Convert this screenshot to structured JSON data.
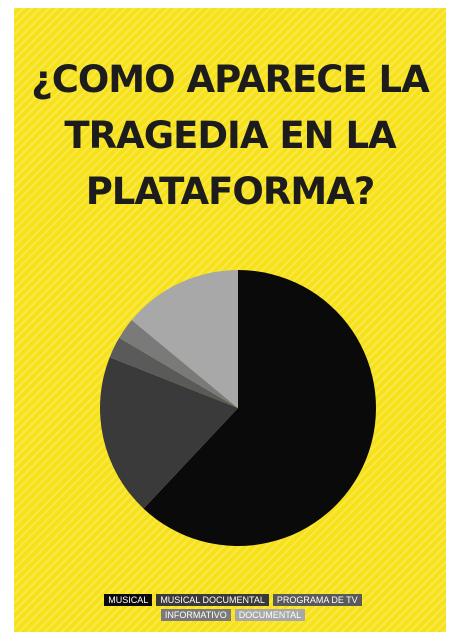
{
  "title_lines": [
    "¿COMO APARECE LA",
    "TRAGEDIA EN LA",
    "PLATAFORMA?"
  ],
  "colors": {
    "background": "#f7e21a",
    "title": "#1c1c1c",
    "slices": [
      "#0a0a0a",
      "#3a3a3a",
      "#5a5a5a",
      "#7a7a7a",
      "#a8a8a8"
    ],
    "legend_text": [
      "#ffffff",
      "#ffffff",
      "#ffffff",
      "#ffffff",
      "#ffffff"
    ]
  },
  "chart_data": {
    "type": "pie",
    "title": "¿COMO APARECE LA TRAGEDIA EN LA PLATAFORMA?",
    "categories": [
      "MUSICAL",
      "MUSICAL DOCUMENTAL",
      "PROGRAMA DE TV",
      "INFORMATIVO",
      "DOCUMENTAL"
    ],
    "values": [
      62,
      19,
      2.5,
      2.5,
      14
    ],
    "unit": "",
    "legend_position": "bottom",
    "start_angle_deg": 0,
    "direction": "clockwise"
  }
}
